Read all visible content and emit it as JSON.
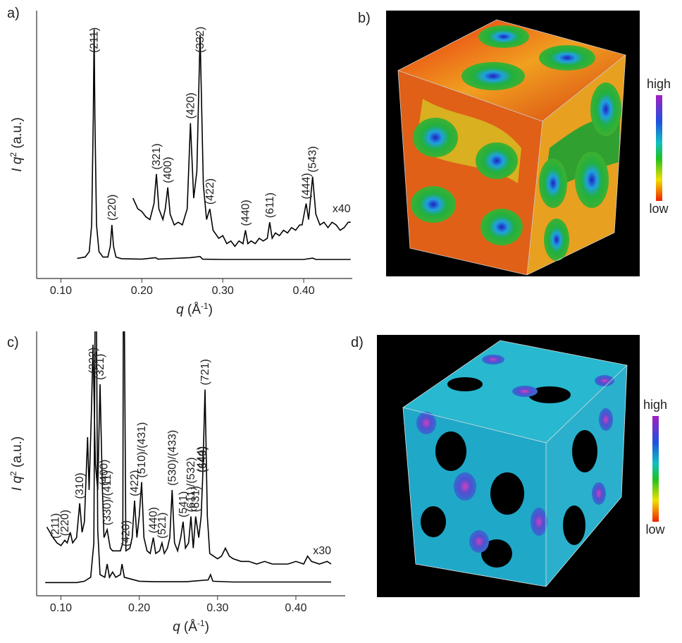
{
  "chart_data": [
    {
      "type": "line",
      "panel": "a)",
      "color": "#000000",
      "x_label": [
        "q",
        " (Å",
        "-1",
        ")"
      ],
      "y_label": [
        "I",
        " q",
        "2",
        " (a.u.)"
      ],
      "xlim": [
        0.07,
        0.46
      ],
      "ylim": [
        0,
        100
      ],
      "xticks": [
        {
          "value": 0.1,
          "label": "0.10"
        },
        {
          "value": 0.2,
          "label": "0.20"
        },
        {
          "value": 0.3,
          "label": "0.30"
        },
        {
          "value": 0.4,
          "label": "0.40"
        }
      ],
      "series": [
        {
          "x": [
            0.12,
            0.13,
            0.135,
            0.138,
            0.14,
            0.141,
            0.142,
            0.144,
            0.147,
            0.152,
            0.158,
            0.161,
            0.163,
            0.165,
            0.168,
            0.175,
            0.2,
            0.217,
            0.22,
            0.26,
            0.272,
            0.275,
            0.3,
            0.35,
            0.4,
            0.411,
            0.415,
            0.458
          ],
          "values": [
            7.5,
            8,
            10,
            20,
            60,
            93,
            60,
            20,
            10,
            8,
            8,
            12,
            20,
            12,
            8,
            7.4,
            7.2,
            7.8,
            7.2,
            7.8,
            8.2,
            7.2,
            7.1,
            7.1,
            7.1,
            7.6,
            7.1,
            7.1
          ],
          "annotations": [
            {
              "text": "(211)",
              "x": 0.141
            },
            {
              "text": "(220)",
              "x": 0.163
            }
          ]
        },
        {
          "name": "x40",
          "x": [
            0.189,
            0.195,
            0.2,
            0.205,
            0.21,
            0.215,
            0.218,
            0.221,
            0.226,
            0.229,
            0.232,
            0.235,
            0.24,
            0.245,
            0.25,
            0.256,
            0.26,
            0.264,
            0.268,
            0.272,
            0.276,
            0.28,
            0.284,
            0.288,
            0.295,
            0.3,
            0.305,
            0.31,
            0.315,
            0.32,
            0.325,
            0.328,
            0.331,
            0.335,
            0.34,
            0.345,
            0.35,
            0.355,
            0.358,
            0.361,
            0.365,
            0.37,
            0.375,
            0.38,
            0.385,
            0.39,
            0.395,
            0.398,
            0.403,
            0.406,
            0.411,
            0.415,
            0.42,
            0.425,
            0.43,
            0.435,
            0.44,
            0.445,
            0.45,
            0.455,
            0.458
          ],
          "values": [
            30,
            26,
            25,
            23,
            22,
            28,
            39,
            26,
            22,
            26,
            34,
            24,
            20,
            21,
            20,
            26,
            58,
            30,
            40,
            91,
            35,
            22,
            26,
            18,
            15,
            16,
            13,
            14,
            12,
            14,
            13,
            18,
            13,
            14,
            13,
            15,
            14,
            15,
            21,
            15,
            17,
            16,
            18,
            17,
            19,
            18,
            20,
            20,
            28,
            22,
            38,
            24,
            20,
            21,
            19,
            21,
            20,
            18,
            19,
            21,
            21
          ],
          "annotations": [
            {
              "text": "(321)",
              "x": 0.218
            },
            {
              "text": "(400)",
              "x": 0.232
            },
            {
              "text": "(420)",
              "x": 0.26
            },
            {
              "text": "(332)",
              "x": 0.272
            },
            {
              "text": "(422)",
              "x": 0.284
            },
            {
              "text": "(440)",
              "x": 0.328
            },
            {
              "text": "(611)",
              "x": 0.358
            },
            {
              "text": "(444)",
              "x": 0.403
            },
            {
              "text": "(543)",
              "x": 0.411
            }
          ]
        }
      ]
    },
    {
      "type": "line",
      "panel": "c)",
      "color": "#000000",
      "x_label": [
        "q",
        " (Å",
        "-1",
        ")"
      ],
      "y_label": [
        "I",
        " q",
        "2",
        " (a.u.)"
      ],
      "xlim": [
        0.069,
        0.463
      ],
      "ylim": [
        0,
        100
      ],
      "xticks": [
        {
          "value": 0.1,
          "label": "0.10"
        },
        {
          "value": 0.2,
          "label": "0.20"
        },
        {
          "value": 0.3,
          "label": "0.30"
        },
        {
          "value": 0.4,
          "label": "0.40"
        }
      ],
      "series": [
        {
          "x": [
            0.08,
            0.12,
            0.13,
            0.138,
            0.142,
            0.1445,
            0.147,
            0.15,
            0.156,
            0.159,
            0.162,
            0.166,
            0.17,
            0.176,
            0.178,
            0.181,
            0.2,
            0.22,
            0.26,
            0.288,
            0.291,
            0.294,
            0.32,
            0.445
          ],
          "values": [
            5,
            5,
            5.5,
            7,
            20,
            150,
            25,
            8,
            7,
            12,
            7,
            9,
            7,
            8,
            12,
            7,
            5.5,
            5.3,
            5.3,
            6,
            8,
            5.5,
            5.2,
            5.2
          ]
        },
        {
          "name": "x30",
          "x": [
            0.082,
            0.086,
            0.09,
            0.095,
            0.1,
            0.105,
            0.108,
            0.112,
            0.115,
            0.12,
            0.124,
            0.127,
            0.13,
            0.134,
            0.136,
            0.139,
            0.141,
            0.144,
            0.147,
            0.15,
            0.153,
            0.155,
            0.159,
            0.163,
            0.166,
            0.17,
            0.176,
            0.179,
            0.18,
            0.183,
            0.188,
            0.191,
            0.194,
            0.197,
            0.2,
            0.203,
            0.206,
            0.21,
            0.214,
            0.218,
            0.221,
            0.226,
            0.229,
            0.232,
            0.236,
            0.239,
            0.242,
            0.245,
            0.249,
            0.253,
            0.256,
            0.259,
            0.263,
            0.266,
            0.269,
            0.272,
            0.276,
            0.279,
            0.281,
            0.284,
            0.287,
            0.29,
            0.295,
            0.3,
            0.305,
            0.31,
            0.315,
            0.32,
            0.33,
            0.34,
            0.35,
            0.36,
            0.37,
            0.38,
            0.39,
            0.4,
            0.41,
            0.415,
            0.42,
            0.43,
            0.44,
            0.445
          ],
          "values": [
            26,
            24,
            22,
            20,
            19,
            21,
            20,
            24,
            20,
            22,
            35,
            24,
            28,
            60,
            40,
            70,
            95,
            50,
            40,
            80,
            40,
            22,
            25,
            18,
            17,
            17,
            17,
            20,
            150,
            17,
            18,
            22,
            36,
            22,
            30,
            43,
            22,
            17,
            16,
            22,
            16,
            17,
            20,
            16,
            18,
            22,
            40,
            20,
            17,
            22,
            28,
            18,
            20,
            30,
            18,
            30,
            22,
            30,
            45,
            78,
            30,
            16,
            15,
            14,
            15,
            18,
            15,
            14,
            13,
            13,
            12,
            13,
            12,
            12,
            12,
            13,
            12,
            15,
            13,
            12,
            13,
            12
          ],
          "annotations": [
            {
              "text": "(211)",
              "x": 0.093
            },
            {
              "text": "(220)",
              "x": 0.105
            },
            {
              "text": "(310)",
              "x": 0.124
            },
            {
              "text": "(222)",
              "x": 0.141
            },
            {
              "text": "(321)",
              "x": 0.15
            },
            {
              "text": "(400)",
              "x": 0.155
            },
            {
              "text": "(330)/(411)",
              "x": 0.159
            },
            {
              "text": "(420)",
              "x": 0.183
            },
            {
              "text": "(422)",
              "x": 0.194
            },
            {
              "text": "(510)/(431)",
              "x": 0.203
            },
            {
              "text": "(440)",
              "x": 0.218
            },
            {
              "text": "(521)",
              "x": 0.229
            },
            {
              "text": "(530)/(433)",
              "x": 0.242
            },
            {
              "text": "(541)",
              "x": 0.256
            },
            {
              "text": "(611)/(532)",
              "x": 0.266
            },
            {
              "text": "(631)",
              "x": 0.272
            },
            {
              "text": "(444)",
              "x": 0.279
            },
            {
              "text": "(640)",
              "x": 0.281
            },
            {
              "text": "(721)",
              "x": 0.284
            }
          ]
        }
      ]
    }
  ],
  "panels": [
    {
      "label": "b)",
      "colorbar": [
        "high",
        "low"
      ]
    },
    {
      "label": "d)",
      "colorbar": [
        "high",
        "low"
      ]
    }
  ]
}
